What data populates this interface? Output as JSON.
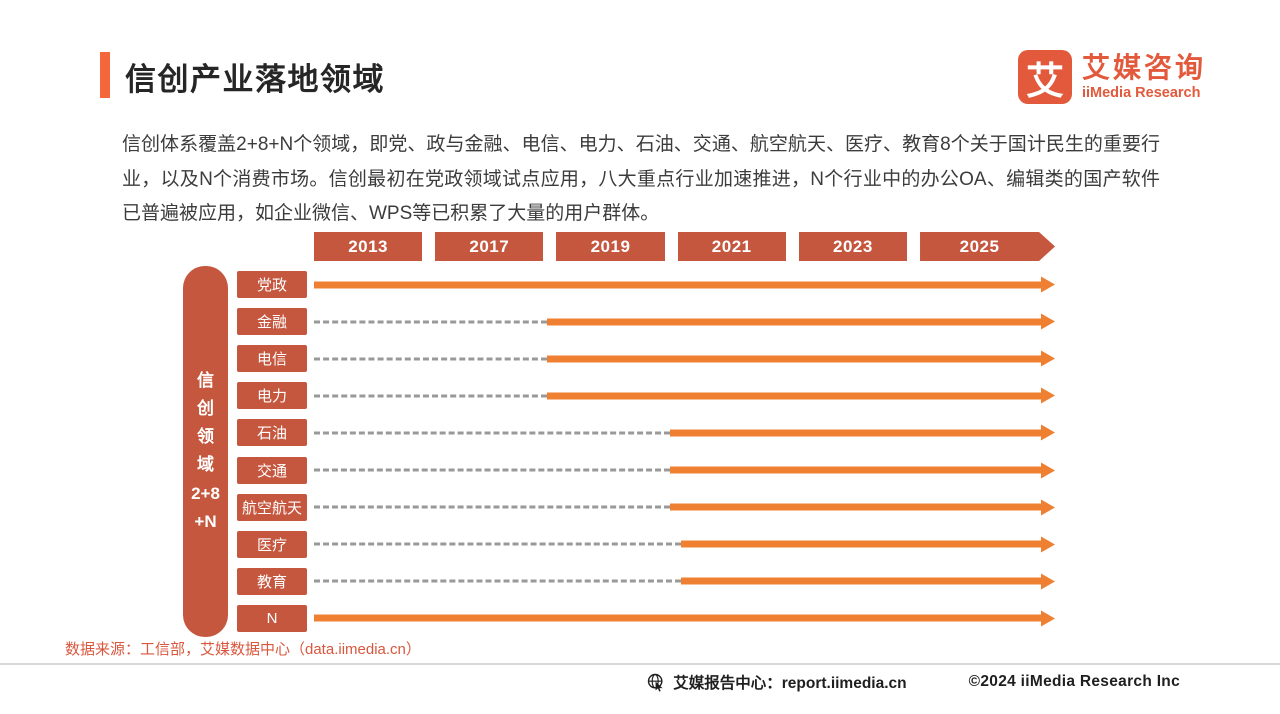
{
  "page": {
    "title": "信创产业落地领域",
    "description": "信创体系覆盖2+8+N个领域，即党、政与金融、电信、电力、石油、交通、航空航天、医疗、教育8个关于国计民生的重要行业，以及N个消费市场。信创最初在党政领域试点应用，八大重点行业加速推进，N个行业中的办公OA、编辑类的国产软件已普遍被应用，如企业微信、WPS等已积累了大量的用户群体。",
    "source_note": "数据来源：工信部，艾媒数据中心（data.iimedia.cn）"
  },
  "logo": {
    "mark": "艾",
    "name_cn": "艾媒咨询",
    "name_en": "iiMedia Research"
  },
  "footer": {
    "report_center": "艾媒报告中心：report.iimedia.cn",
    "copyright": "©2024  iiMedia Research  Inc"
  },
  "colors": {
    "accent_orange": "#F4673B",
    "arrow_orange": "#EF8032",
    "box_red_orange": "#C5573F",
    "dash_gray": "#999999",
    "logo_orange": "#E2593C",
    "source_text": "#D9573D"
  },
  "chart_data": {
    "type": "bar",
    "subtype": "gantt-timeline",
    "title": "信创产业落地领域",
    "axis_label": "信创领域2+8+N",
    "axis_label_lines": [
      "信",
      "创",
      "领",
      "域",
      "2+8",
      "+N"
    ],
    "x_ticks": [
      "2013",
      "2017",
      "2019",
      "2021",
      "2023",
      "2025"
    ],
    "x_range": [
      2013,
      2026
    ],
    "legend": null,
    "grid": false,
    "rows": [
      {
        "label": "党政",
        "start_year": 2013,
        "start_pct": 0,
        "dashed_lead": false
      },
      {
        "label": "金融",
        "start_year": 2019,
        "start_pct": 31.5,
        "dashed_lead": true
      },
      {
        "label": "电信",
        "start_year": 2019,
        "start_pct": 31.5,
        "dashed_lead": true
      },
      {
        "label": "电力",
        "start_year": 2019,
        "start_pct": 31.5,
        "dashed_lead": true
      },
      {
        "label": "石油",
        "start_year": 2021,
        "start_pct": 48,
        "dashed_lead": true
      },
      {
        "label": "交通",
        "start_year": 2021,
        "start_pct": 48,
        "dashed_lead": true
      },
      {
        "label": "航空航天",
        "start_year": 2021,
        "start_pct": 48,
        "dashed_lead": true
      },
      {
        "label": "医疗",
        "start_year": 2021,
        "start_pct": 49.5,
        "dashed_lead": true
      },
      {
        "label": "教育",
        "start_year": 2021,
        "start_pct": 49.5,
        "dashed_lead": true
      },
      {
        "label": "N",
        "start_year": 2013,
        "start_pct": 0,
        "dashed_lead": false
      }
    ]
  }
}
